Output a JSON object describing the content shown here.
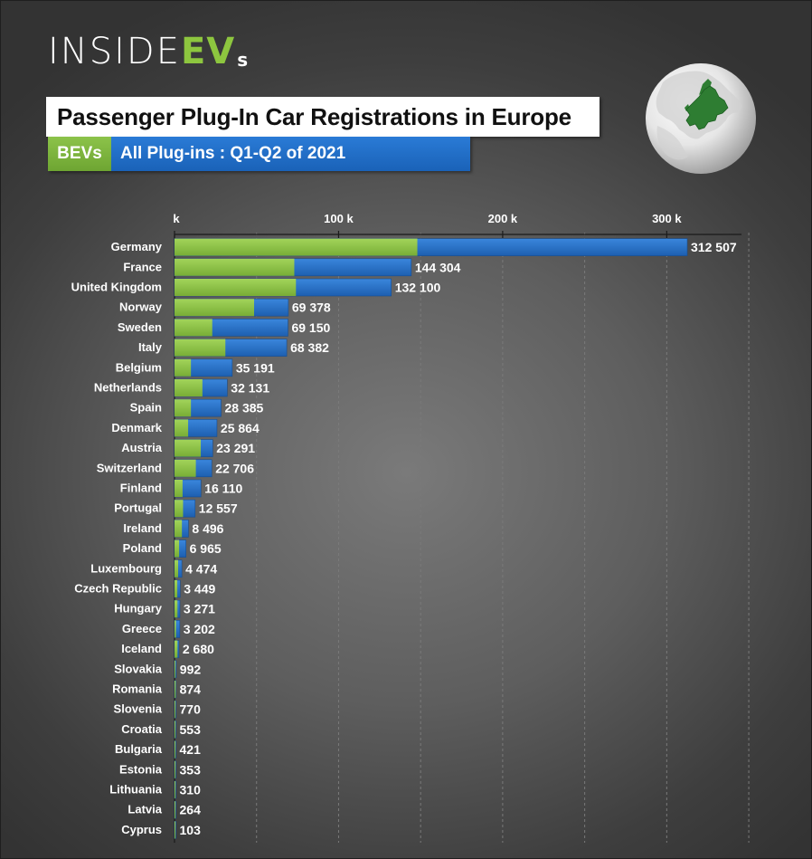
{
  "brand": {
    "logo_main": "INSIDE",
    "logo_accent": "EV",
    "logo_suffix": "s"
  },
  "header": {
    "title": "Passenger Plug-In Car Registrations in Europe",
    "legend_bev": "BEVs",
    "legend_all": "All Plug-ins : Q1-Q2  of 2021"
  },
  "colors": {
    "bev": "#8bc34a",
    "plugin": "#2a70c8",
    "text": "#ffffff"
  },
  "icons": {
    "globe": "europe-globe-icon"
  },
  "chart_data": {
    "type": "bar",
    "orientation": "horizontal",
    "stacked": "overlay",
    "xlim": [
      0,
      350000
    ],
    "x_ticks": [
      0,
      100000,
      200000,
      300000
    ],
    "x_tick_labels": [
      "k",
      "100 k",
      "200 k",
      "300 k"
    ],
    "grid": true,
    "categories": [
      "Germany",
      "France",
      "United Kingdom",
      "Norway",
      "Sweden",
      "Italy",
      "Belgium",
      "Netherlands",
      "Spain",
      "Denmark",
      "Austria",
      "Switzerland",
      "Finland",
      "Portugal",
      "Ireland",
      "Poland",
      "Luxembourg",
      "Czech Republic",
      "Hungary",
      "Greece",
      "Iceland",
      "Slovakia",
      "Romania",
      "Slovenia",
      "Croatia",
      "Bulgaria",
      "Estonia",
      "Lithuania",
      "Latvia",
      "Cyprus"
    ],
    "series": [
      {
        "name": "BEVs",
        "values": [
          148000,
          73000,
          74000,
          48500,
          23000,
          31000,
          10000,
          17000,
          10000,
          8300,
          16000,
          13000,
          4900,
          5200,
          4500,
          2800,
          2200,
          1700,
          1800,
          900,
          1800,
          520,
          690,
          490,
          360,
          250,
          220,
          160,
          150,
          50
        ]
      },
      {
        "name": "All Plug-ins",
        "values": [
          312507,
          144304,
          132100,
          69378,
          69150,
          68382,
          35191,
          32131,
          28385,
          25864,
          23291,
          22706,
          16110,
          12557,
          8496,
          6965,
          4474,
          3449,
          3271,
          3202,
          2680,
          992,
          874,
          770,
          553,
          421,
          353,
          310,
          264,
          103
        ]
      }
    ],
    "value_labels": [
      "312 507",
      "144 304",
      "132 100",
      "69 378",
      "69 150",
      "68 382",
      "35 191",
      "32 131",
      "28 385",
      "25 864",
      "23 291",
      "22 706",
      "16 110",
      "12 557",
      "8 496",
      "6 965",
      "4 474",
      "3 449",
      "3 271",
      "3 202",
      "2 680",
      "992",
      "874",
      "770",
      "553",
      "421",
      "353",
      "310",
      "264",
      "103"
    ]
  }
}
